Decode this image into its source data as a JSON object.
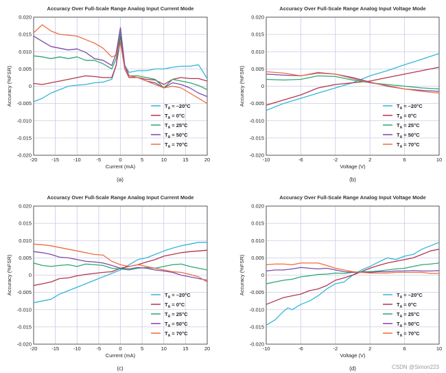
{
  "chart_data": [
    {
      "type": "line",
      "title": "Accuracy Over Full-Scale Range Analog Input Current Mode",
      "xlabel": "Current (mA)",
      "ylabel": "Accuracy (%FSR)",
      "caption": "(a)",
      "xlim": [
        -20,
        20
      ],
      "ylim": [
        -0.02,
        0.02
      ],
      "xticks": [
        -20,
        -15,
        -10,
        -5,
        0,
        5,
        10,
        15,
        20
      ],
      "yticks": [
        -0.02,
        -0.015,
        -0.01,
        -0.005,
        0,
        0.005,
        0.01,
        0.015,
        0.02
      ],
      "grid": true,
      "legend_position": "bottom-right",
      "series": [
        {
          "name": "TA = -20°C",
          "color": "#33b5d8",
          "x": [
            -20,
            -18,
            -16,
            -14,
            -12,
            -10,
            -8,
            -6,
            -4,
            -2,
            -1,
            0,
            1,
            2,
            4,
            6,
            8,
            10,
            12,
            14,
            16,
            18,
            20
          ],
          "y": [
            -0.0045,
            -0.0035,
            -0.002,
            -0.001,
            0.0,
            0.0003,
            0.0005,
            0.001,
            0.0012,
            0.002,
            0.006,
            0.013,
            0.006,
            0.004,
            0.0045,
            0.0045,
            0.005,
            0.005,
            0.0055,
            0.0058,
            0.0058,
            0.0062,
            0.0022
          ]
        },
        {
          "name": "TA = 0°C",
          "color": "#b2354a",
          "x": [
            -20,
            -18,
            -16,
            -14,
            -12,
            -10,
            -8,
            -6,
            -4,
            -2,
            -1,
            0,
            1,
            2,
            4,
            6,
            8,
            10,
            12,
            14,
            16,
            18,
            20
          ],
          "y": [
            0.0008,
            0.0005,
            0.001,
            0.0015,
            0.002,
            0.0025,
            0.003,
            0.0028,
            0.0025,
            0.0025,
            0.006,
            0.0145,
            0.005,
            0.0025,
            0.0025,
            0.002,
            0.0018,
            0.0005,
            0.002,
            0.0025,
            0.0022,
            0.0022,
            0.0015
          ]
        },
        {
          "name": "TA = 25°C",
          "color": "#2ba773",
          "x": [
            -20,
            -18,
            -16,
            -14,
            -12,
            -10,
            -8,
            -6,
            -4,
            -2,
            -1,
            0,
            1,
            2,
            4,
            6,
            8,
            10,
            12,
            14,
            16,
            18,
            20
          ],
          "y": [
            0.0088,
            0.0085,
            0.008,
            0.0085,
            0.008,
            0.0085,
            0.0075,
            0.0075,
            0.0065,
            0.005,
            0.008,
            0.0155,
            0.006,
            0.003,
            0.003,
            0.0025,
            0.002,
            -0.0005,
            0.002,
            0.0015,
            0.001,
            0.0002,
            -0.001
          ]
        },
        {
          "name": "TA = 50°C",
          "color": "#7a49a6",
          "x": [
            -20,
            -18,
            -16,
            -14,
            -12,
            -10,
            -8,
            -6,
            -4,
            -2,
            -1,
            0,
            1,
            2,
            4,
            6,
            8,
            10,
            12,
            14,
            16,
            18,
            20
          ],
          "y": [
            0.0145,
            0.013,
            0.0115,
            0.011,
            0.0105,
            0.0108,
            0.0098,
            0.008,
            0.0075,
            0.006,
            0.0095,
            0.017,
            0.006,
            0.003,
            0.0025,
            0.0015,
            0.001,
            -0.0005,
            0.001,
            0.0005,
            -0.0005,
            -0.002,
            -0.003
          ]
        },
        {
          "name": "TA = 70°C",
          "color": "#ef6b3e",
          "x": [
            -20,
            -18,
            -16,
            -14,
            -12,
            -10,
            -8,
            -6,
            -4,
            -2,
            -1,
            0,
            1,
            2,
            4,
            6,
            8,
            10,
            12,
            14,
            16,
            18,
            20
          ],
          "y": [
            0.0155,
            0.0178,
            0.016,
            0.015,
            0.0148,
            0.0145,
            0.0135,
            0.0125,
            0.011,
            0.0085,
            0.009,
            0.0125,
            0.005,
            0.003,
            0.0025,
            0.0015,
            0.0005,
            -0.0005,
            0.0,
            -0.0005,
            -0.002,
            -0.0035,
            -0.005
          ]
        }
      ]
    },
    {
      "type": "line",
      "title": "Accuracy Over Full-Scale Range Analog Input Voltage Mode",
      "xlabel": "Voltage (V)",
      "ylabel": "Accuracy (%FSR)",
      "caption": "(b)",
      "xlim": [
        -10,
        10
      ],
      "ylim": [
        -0.02,
        0.02
      ],
      "xticks": [
        -10,
        -6,
        -2,
        2,
        6,
        10
      ],
      "yticks": [
        -0.02,
        -0.015,
        -0.01,
        -0.005,
        0,
        0.005,
        0.01,
        0.015,
        0.02
      ],
      "grid": true,
      "legend_position": "bottom-right",
      "series": [
        {
          "name": "TA = -20°C",
          "color": "#33b5d8",
          "x": [
            -10,
            -8,
            -6,
            -4,
            -2,
            0,
            2,
            4,
            6,
            8,
            10
          ],
          "y": [
            -0.007,
            -0.005,
            -0.0035,
            -0.002,
            -0.0005,
            0.001,
            0.003,
            0.0045,
            0.0062,
            0.0078,
            0.0095
          ]
        },
        {
          "name": "TA = 0°C",
          "color": "#b2354a",
          "x": [
            -10,
            -8,
            -6,
            -4,
            -2,
            0,
            2,
            4,
            6,
            8,
            10
          ],
          "y": [
            -0.0055,
            -0.004,
            -0.0025,
            -0.0005,
            0.0005,
            0.001,
            0.0015,
            0.0025,
            0.0035,
            0.0045,
            0.0055
          ]
        },
        {
          "name": "TA = 25°C",
          "color": "#2ba773",
          "x": [
            -10,
            -8,
            -6,
            -4,
            -2,
            0,
            2,
            4,
            6,
            8,
            10
          ],
          "y": [
            0.002,
            0.0018,
            0.002,
            0.003,
            0.0028,
            0.0018,
            0.001,
            0.0005,
            0.0,
            -0.0005,
            -0.0008
          ]
        },
        {
          "name": "TA = 50°C",
          "color": "#7a49a6",
          "x": [
            -10,
            -8,
            -6,
            -4,
            -2,
            0,
            2,
            4,
            6,
            8,
            10
          ],
          "y": [
            0.0035,
            0.0032,
            0.003,
            0.0038,
            0.0035,
            0.0025,
            0.0012,
            0.0,
            -0.0008,
            -0.0012,
            -0.0015
          ]
        },
        {
          "name": "TA = 70°C",
          "color": "#ef6b3e",
          "x": [
            -10,
            -8,
            -6,
            -4,
            -2,
            0,
            2,
            4,
            6,
            8,
            10
          ],
          "y": [
            0.0042,
            0.0038,
            0.003,
            0.004,
            0.0035,
            0.0022,
            0.001,
            0.0002,
            -0.0008,
            -0.0015,
            -0.002
          ]
        }
      ]
    },
    {
      "type": "line",
      "title": "Accuracy Over Full-Scale Range Analog Input Current Mode",
      "xlabel": "Current (mA)",
      "ylabel": "Accuracy (%FSR)",
      "caption": "(c)",
      "xlim": [
        -20,
        20
      ],
      "ylim": [
        -0.02,
        0.02
      ],
      "xticks": [
        -20,
        -15,
        -10,
        -5,
        0,
        5,
        10,
        15,
        20
      ],
      "yticks": [
        -0.02,
        -0.015,
        -0.01,
        -0.005,
        0,
        0.005,
        0.01,
        0.015,
        0.02
      ],
      "grid": true,
      "legend_position": "bottom-right",
      "series": [
        {
          "name": "TA = -20°C",
          "color": "#33b5d8",
          "x": [
            -20,
            -18,
            -16,
            -14,
            -12,
            -10,
            -8,
            -6,
            -4,
            -2,
            0,
            2,
            4,
            6,
            8,
            10,
            12,
            14,
            16,
            18,
            20
          ],
          "y": [
            -0.008,
            -0.0075,
            -0.007,
            -0.0055,
            -0.0045,
            -0.0035,
            -0.0025,
            -0.0015,
            -0.0005,
            0.0005,
            0.0015,
            0.003,
            0.0045,
            0.005,
            0.006,
            0.007,
            0.0078,
            0.0085,
            0.009,
            0.0095,
            0.0095
          ]
        },
        {
          "name": "TA = 0°C",
          "color": "#b2354a",
          "x": [
            -20,
            -18,
            -16,
            -14,
            -12,
            -10,
            -8,
            -6,
            -4,
            -2,
            0,
            2,
            4,
            6,
            8,
            10,
            12,
            14,
            16,
            18,
            20
          ],
          "y": [
            -0.003,
            -0.0025,
            -0.002,
            -0.001,
            -0.0008,
            -0.0002,
            0.0002,
            0.0005,
            0.0008,
            0.001,
            0.002,
            0.0025,
            0.003,
            0.0038,
            0.0045,
            0.0055,
            0.006,
            0.0065,
            0.0068,
            0.007,
            0.0072
          ]
        },
        {
          "name": "TA = 25°C",
          "color": "#2ba773",
          "x": [
            -20,
            -18,
            -16,
            -14,
            -12,
            -10,
            -8,
            -6,
            -4,
            -2,
            0,
            2,
            4,
            6,
            8,
            10,
            12,
            14,
            16,
            18,
            20
          ],
          "y": [
            0.0035,
            0.0028,
            0.0025,
            0.0028,
            0.003,
            0.0025,
            0.0032,
            0.003,
            0.0028,
            0.002,
            0.0018,
            0.0015,
            0.002,
            0.0022,
            0.002,
            0.0025,
            0.003,
            0.0032,
            0.0025,
            0.002,
            0.0015
          ]
        },
        {
          "name": "TA = 50°C",
          "color": "#7a49a6",
          "x": [
            -20,
            -18,
            -16,
            -14,
            -12,
            -10,
            -8,
            -6,
            -4,
            -2,
            0,
            2,
            4,
            6,
            8,
            10,
            12,
            14,
            16,
            18,
            20
          ],
          "y": [
            0.0068,
            0.0065,
            0.006,
            0.0052,
            0.005,
            0.0045,
            0.004,
            0.0038,
            0.0035,
            0.0028,
            0.002,
            0.0018,
            0.0022,
            0.002,
            0.0015,
            0.0012,
            0.0008,
            0.0,
            -0.0005,
            -0.001,
            -0.0015
          ]
        },
        {
          "name": "TA = 70°C",
          "color": "#ef6b3e",
          "x": [
            -20,
            -18,
            -16,
            -14,
            -12,
            -10,
            -8,
            -6,
            -4,
            -2,
            0,
            2,
            4,
            6,
            8,
            10,
            12,
            14,
            16,
            18,
            20
          ],
          "y": [
            0.009,
            0.0088,
            0.0085,
            0.008,
            0.0075,
            0.007,
            0.0065,
            0.006,
            0.0058,
            0.004,
            0.003,
            0.0025,
            0.003,
            0.0025,
            0.002,
            0.0015,
            0.001,
            0.0008,
            0.0002,
            -0.0005,
            -0.002
          ]
        }
      ]
    },
    {
      "type": "line",
      "title": "Accuracy Over Full-Scale Range Analog Input Voltage Mode",
      "xlabel": "Voltage (V)",
      "ylabel": "Accuracy (%FSR)",
      "caption": "(d)",
      "xlim": [
        -10,
        10
      ],
      "ylim": [
        -0.02,
        0.02
      ],
      "xticks": [
        -10,
        -6,
        -2,
        2,
        6,
        10
      ],
      "yticks": [
        -0.02,
        -0.015,
        -0.01,
        -0.005,
        0,
        0.005,
        0.01,
        0.015,
        0.02
      ],
      "grid": true,
      "legend_position": "bottom-right",
      "series": [
        {
          "name": "TA = -20°C",
          "color": "#33b5d8",
          "x": [
            -10,
            -9,
            -8,
            -7.5,
            -7,
            -6,
            -5,
            -4,
            -3,
            -2,
            -1,
            0,
            1,
            2,
            3,
            4,
            5,
            6,
            7,
            8,
            9,
            10
          ],
          "y": [
            -0.0145,
            -0.013,
            -0.0105,
            -0.0095,
            -0.01,
            -0.0085,
            -0.0075,
            -0.006,
            -0.004,
            -0.0025,
            -0.002,
            0.0,
            0.0015,
            0.0025,
            0.0038,
            0.005,
            0.0045,
            0.0055,
            0.006,
            0.0075,
            0.0085,
            0.0095
          ]
        },
        {
          "name": "TA = 0°C",
          "color": "#b2354a",
          "x": [
            -10,
            -9,
            -8,
            -7,
            -6,
            -5,
            -4,
            -3,
            -2,
            -1,
            0,
            1,
            2,
            3,
            4,
            5,
            6,
            7,
            8,
            9,
            10
          ],
          "y": [
            -0.0085,
            -0.0075,
            -0.0065,
            -0.006,
            -0.0055,
            -0.0045,
            -0.004,
            -0.003,
            -0.0015,
            -0.0008,
            0.0,
            0.001,
            0.002,
            0.0028,
            0.0035,
            0.004,
            0.0045,
            0.005,
            0.006,
            0.007,
            0.0075
          ]
        },
        {
          "name": "TA = 25°C",
          "color": "#2ba773",
          "x": [
            -10,
            -9,
            -8,
            -7,
            -6,
            -5,
            -4,
            -3,
            -2,
            -1,
            0,
            1,
            2,
            3,
            4,
            5,
            6,
            7,
            8,
            9,
            10
          ],
          "y": [
            -0.0025,
            -0.002,
            -0.0015,
            -0.0012,
            -0.0005,
            -0.0002,
            0.0002,
            0.0003,
            0.0006,
            0.0005,
            0.0008,
            0.001,
            0.001,
            0.0012,
            0.0015,
            0.0018,
            0.002,
            0.0025,
            0.003,
            0.0032,
            0.0035
          ]
        },
        {
          "name": "TA = 50°C",
          "color": "#7a49a6",
          "x": [
            -10,
            -9,
            -8,
            -7,
            -6,
            -5,
            -4,
            -3,
            -2,
            -1,
            0,
            1,
            2,
            3,
            4,
            5,
            6,
            7,
            8,
            9,
            10
          ],
          "y": [
            0.0012,
            0.0015,
            0.0015,
            0.0018,
            0.0022,
            0.002,
            0.0018,
            0.002,
            0.0015,
            0.001,
            0.0008,
            0.0008,
            0.0008,
            0.001,
            0.001,
            0.0012,
            0.0012,
            0.0013,
            0.0012,
            0.0012,
            0.0013
          ]
        },
        {
          "name": "TA = 70°C",
          "color": "#ef6b3e",
          "x": [
            -10,
            -9,
            -8,
            -7,
            -6,
            -5,
            -4,
            -3,
            -2,
            -1,
            0,
            1,
            2,
            3,
            4,
            5,
            6,
            7,
            8,
            9,
            10
          ],
          "y": [
            0.003,
            0.0032,
            0.0032,
            0.003,
            0.0035,
            0.0035,
            0.0035,
            0.0028,
            0.002,
            0.0015,
            0.001,
            0.0008,
            0.0006,
            0.0006,
            0.0006,
            0.0008,
            0.0008,
            0.0008,
            0.0008,
            0.0005,
            0.0005
          ]
        }
      ]
    }
  ],
  "watermark": "CSDN @Simon223"
}
